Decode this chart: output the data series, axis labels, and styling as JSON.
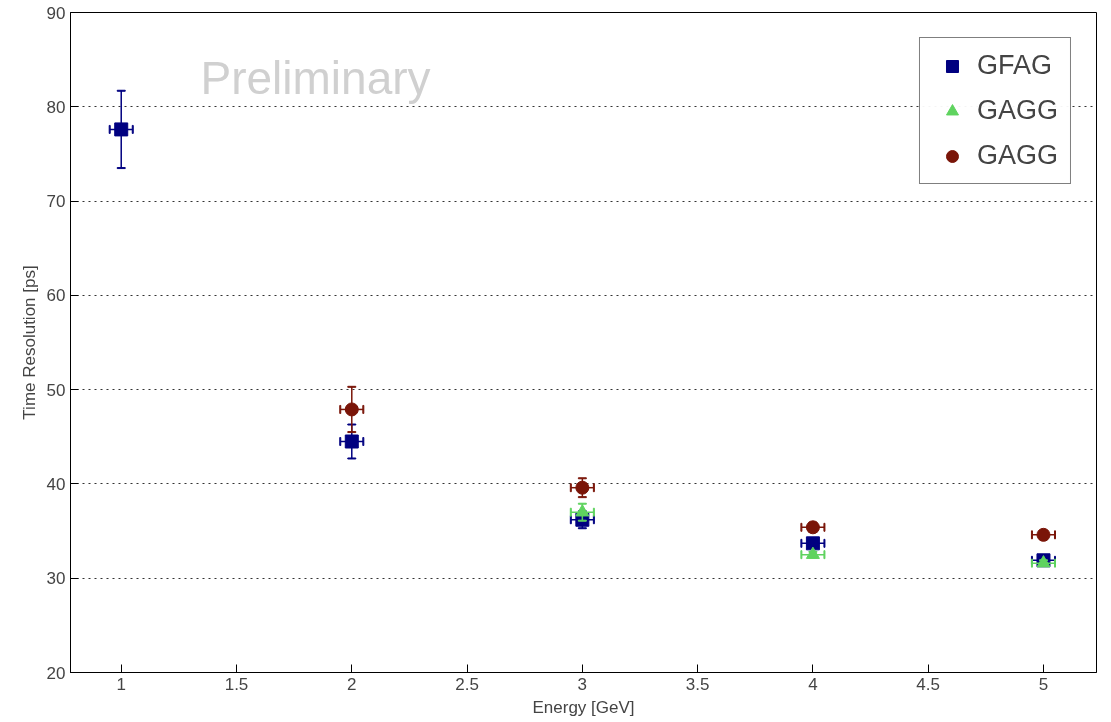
{
  "chart_data": {
    "type": "scatter",
    "xlabel": "Energy [GeV]",
    "ylabel": "Time Resolution [ps]",
    "annotations": [
      "Preliminary"
    ],
    "x": [
      1,
      2,
      3,
      4,
      5
    ],
    "series": [
      {
        "name": "GFAG",
        "color": "#000080",
        "marker": "square",
        "values": [
          77.6,
          44.5,
          36.2,
          33.7,
          31.9
        ],
        "errors": [
          4.1,
          1.8,
          0.9,
          0.5,
          0.3
        ],
        "xerrors": [
          0.05,
          0.05,
          0.05,
          0.05,
          0.05
        ]
      },
      {
        "name": "GAGG",
        "color": "#5fd35f",
        "marker": "triangle",
        "values": [
          null,
          null,
          37.0,
          32.5,
          31.6
        ],
        "errors": [
          null,
          null,
          0.9,
          0.3,
          0.3
        ],
        "xerrors": [
          null,
          null,
          0.05,
          0.05,
          0.05
        ]
      },
      {
        "name": "GAGG",
        "color": "#7a1508",
        "marker": "circle",
        "values": [
          null,
          47.9,
          39.6,
          35.4,
          34.6
        ],
        "errors": [
          null,
          2.4,
          1.0,
          0.5,
          0.4
        ],
        "xerrors": [
          null,
          0.05,
          0.05,
          0.05,
          0.05
        ]
      }
    ],
    "xlim": [
      0.78,
      5.23
    ],
    "ylim": [
      20,
      90
    ],
    "xticks": [
      1,
      1.5,
      2,
      2.5,
      3,
      3.5,
      4,
      4.5,
      5
    ],
    "yticks": [
      20,
      30,
      40,
      50,
      60,
      70,
      80,
      90
    ],
    "grid": "y",
    "legend": "top right"
  }
}
